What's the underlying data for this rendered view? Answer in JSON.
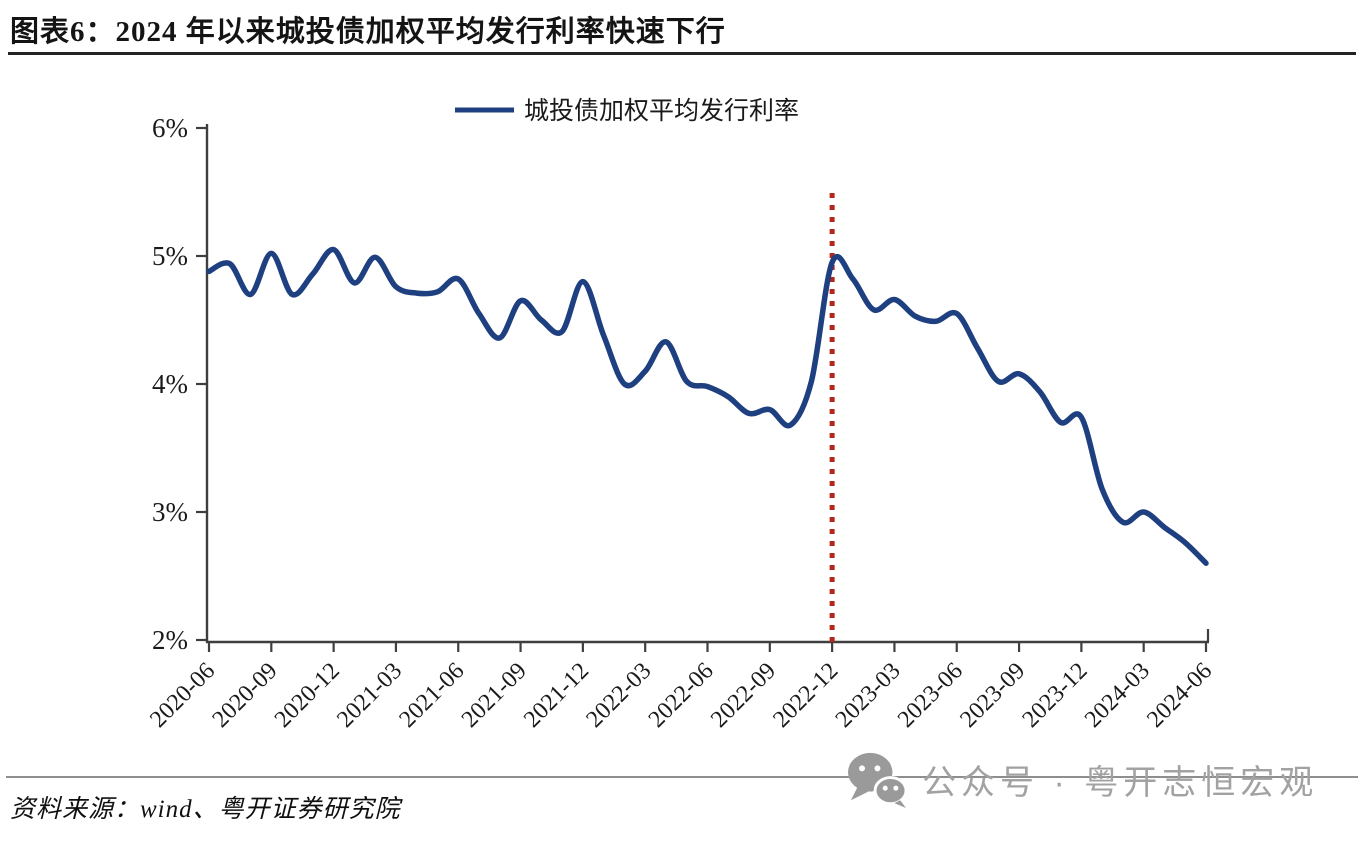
{
  "header": {
    "title": "图表6：2024 年以来城投债加权平均发行利率快速下行"
  },
  "chart_data": {
    "type": "line",
    "title": "",
    "legend": [
      "城投债加权平均发行利率"
    ],
    "legend_position": "top-center",
    "grid": false,
    "ylim": [
      2,
      6
    ],
    "yticks": [
      {
        "value": 2,
        "label": "2%"
      },
      {
        "value": 3,
        "label": "3%"
      },
      {
        "value": 4,
        "label": "4%"
      },
      {
        "value": 5,
        "label": "5%"
      },
      {
        "value": 6,
        "label": "6%"
      }
    ],
    "x_tick_every": 3,
    "xtick_labels": [
      "2020-06",
      "2020-09",
      "2020-12",
      "2021-03",
      "2021-06",
      "2021-09",
      "2021-12",
      "2022-03",
      "2022-06",
      "2022-09",
      "2022-12",
      "2023-03",
      "2023-06",
      "2023-09",
      "2023-12",
      "2024-03",
      "2024-06"
    ],
    "x": [
      "2020-06",
      "2020-07",
      "2020-08",
      "2020-09",
      "2020-10",
      "2020-11",
      "2020-12",
      "2021-01",
      "2021-02",
      "2021-03",
      "2021-04",
      "2021-05",
      "2021-06",
      "2021-07",
      "2021-08",
      "2021-09",
      "2021-10",
      "2021-11",
      "2021-12",
      "2022-01",
      "2022-02",
      "2022-03",
      "2022-04",
      "2022-05",
      "2022-06",
      "2022-07",
      "2022-08",
      "2022-09",
      "2022-10",
      "2022-11",
      "2022-12",
      "2023-01",
      "2023-02",
      "2023-03",
      "2023-04",
      "2023-05",
      "2023-06",
      "2023-07",
      "2023-08",
      "2023-09",
      "2023-10",
      "2023-11",
      "2023-12",
      "2024-01",
      "2024-02",
      "2024-03",
      "2024-04",
      "2024-05",
      "2024-06"
    ],
    "series": [
      {
        "name": "城投债加权平均发行利率",
        "unit": "%",
        "color": "#1f4080",
        "values": [
          4.88,
          4.94,
          4.7,
          5.02,
          4.7,
          4.86,
          5.05,
          4.79,
          4.99,
          4.76,
          4.71,
          4.72,
          4.82,
          4.55,
          4.36,
          4.65,
          4.5,
          4.41,
          4.8,
          4.38,
          4.0,
          4.1,
          4.33,
          4.02,
          3.98,
          3.9,
          3.77,
          3.8,
          3.68,
          4.02,
          4.95,
          4.82,
          4.58,
          4.66,
          4.53,
          4.49,
          4.55,
          4.28,
          4.02,
          4.08,
          3.94,
          3.7,
          3.74,
          3.18,
          2.92,
          3.0,
          2.88,
          2.76,
          2.6
        ]
      }
    ],
    "annotations": [
      {
        "type": "vline",
        "x": "2022-12",
        "style": "dotted",
        "color": "#b1271b"
      }
    ],
    "axis_color": "#3f3f3f"
  },
  "source": {
    "text": "资料来源：wind、粤开证券研究院"
  },
  "watermark": {
    "icon": "wechat-icon",
    "text": "公众号 · 粤开志恒宏观"
  }
}
